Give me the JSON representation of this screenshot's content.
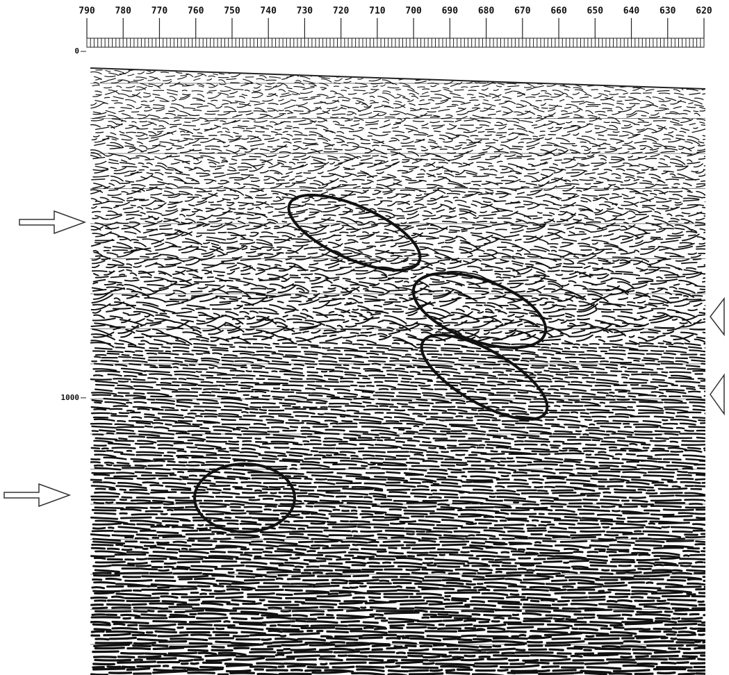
{
  "chart_data": {
    "type": "seismic",
    "xlim": [
      790,
      620
    ],
    "xticks": [
      790,
      780,
      770,
      760,
      750,
      740,
      730,
      720,
      710,
      700,
      690,
      680,
      670,
      660,
      650,
      640,
      630,
      620
    ],
    "ylim": [
      0,
      1800
    ],
    "yticks": [
      0,
      1000
    ]
  }
}
